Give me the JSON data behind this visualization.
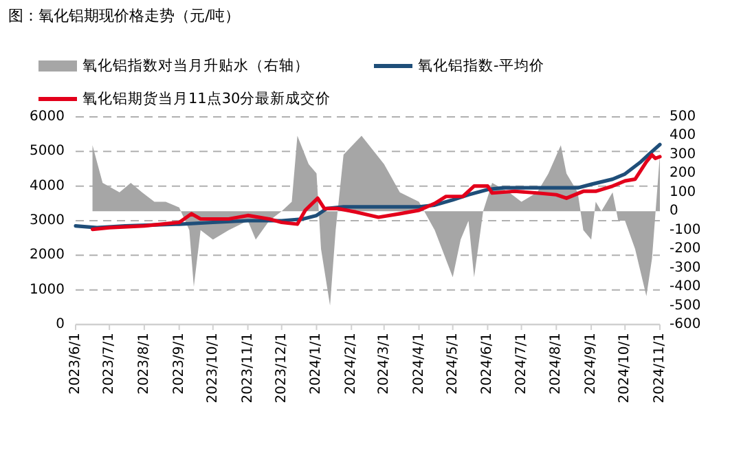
{
  "chart_data": {
    "type": "line",
    "title": "图：氧化铝期现价格走势（元/吨）",
    "legend": "top",
    "grid": "y",
    "xlim": [
      "2023-06-01",
      "2024-11-01"
    ],
    "xticks": [
      {
        "value": "2023-06-01",
        "label": "2023/6/1"
      },
      {
        "value": "2023-07-01",
        "label": "2023/7/1"
      },
      {
        "value": "2023-08-01",
        "label": "2023/8/1"
      },
      {
        "value": "2023-09-01",
        "label": "2023/9/1"
      },
      {
        "value": "2023-10-01",
        "label": "2023/10/1"
      },
      {
        "value": "2023-11-01",
        "label": "2023/11/1"
      },
      {
        "value": "2023-12-01",
        "label": "2023/12/1"
      },
      {
        "value": "2024-01-01",
        "label": "2024/1/1"
      },
      {
        "value": "2024-02-01",
        "label": "2024/2/1"
      },
      {
        "value": "2024-03-01",
        "label": "2024/3/1"
      },
      {
        "value": "2024-04-01",
        "label": "2024/4/1"
      },
      {
        "value": "2024-05-01",
        "label": "2024/5/1"
      },
      {
        "value": "2024-06-01",
        "label": "2024/6/1"
      },
      {
        "value": "2024-07-01",
        "label": "2024/7/1"
      },
      {
        "value": "2024-08-01",
        "label": "2024/8/1"
      },
      {
        "value": "2024-09-01",
        "label": "2024/9/1"
      },
      {
        "value": "2024-10-01",
        "label": "2024/10/1"
      },
      {
        "value": "2024-11-01",
        "label": "2024/11/1"
      }
    ],
    "ylim": [
      0,
      6000
    ],
    "yticks": [
      0,
      1000,
      2000,
      3000,
      4000,
      5000,
      6000
    ],
    "y2lim": [
      -600,
      500
    ],
    "y2ticks": [
      -600,
      -500,
      -400,
      -300,
      -200,
      -100,
      0,
      100,
      200,
      300,
      400,
      500
    ],
    "series": [
      {
        "name": "氧化铝指数对当月升贴水（右轴）",
        "type": "area",
        "axis": "y2",
        "color": "#a6a6a6",
        "x": [
          "2023-06-16",
          "2023-06-25",
          "2023-07-10",
          "2023-07-20",
          "2023-07-30",
          "2023-08-10",
          "2023-08-20",
          "2023-09-01",
          "2023-09-10",
          "2023-09-14",
          "2023-09-20",
          "2023-10-01",
          "2023-10-15",
          "2023-11-01",
          "2023-11-08",
          "2023-11-20",
          "2023-12-01",
          "2023-12-10",
          "2023-12-15",
          "2023-12-25",
          "2024-01-01",
          "2024-01-05",
          "2024-01-13",
          "2024-01-18",
          "2024-01-25",
          "2024-02-10",
          "2024-03-01",
          "2024-03-15",
          "2024-04-01",
          "2024-04-15",
          "2024-05-01",
          "2024-05-08",
          "2024-05-15",
          "2024-05-20",
          "2024-05-28",
          "2024-06-05",
          "2024-06-20",
          "2024-07-01",
          "2024-07-15",
          "2024-07-25",
          "2024-08-05",
          "2024-08-10",
          "2024-08-20",
          "2024-08-25",
          "2024-09-01",
          "2024-09-05",
          "2024-09-10",
          "2024-09-20",
          "2024-09-25",
          "2024-10-01",
          "2024-10-10",
          "2024-10-20",
          "2024-10-25",
          "2024-11-01"
        ],
        "values": [
          350,
          150,
          100,
          150,
          100,
          50,
          50,
          20,
          -100,
          -400,
          -100,
          -150,
          -100,
          -50,
          -150,
          -50,
          0,
          50,
          400,
          250,
          200,
          -200,
          -500,
          -100,
          300,
          400,
          250,
          100,
          50,
          -100,
          -350,
          -150,
          -50,
          -350,
          0,
          150,
          100,
          50,
          100,
          200,
          350,
          200,
          100,
          -100,
          -150,
          50,
          0,
          100,
          -50,
          -50,
          -200,
          -450,
          -250,
          300
        ]
      },
      {
        "name": "氧化铝指数-平均价",
        "color": "#1f4e79",
        "x": [
          "2023-06-01",
          "2023-06-20",
          "2023-07-15",
          "2023-09-01",
          "2023-10-01",
          "2023-11-01",
          "2023-12-01",
          "2023-12-20",
          "2024-01-01",
          "2024-01-10",
          "2024-01-25",
          "2024-04-01",
          "2024-04-15",
          "2024-05-01",
          "2024-05-15",
          "2024-06-01",
          "2024-06-15",
          "2024-08-20",
          "2024-09-01",
          "2024-09-20",
          "2024-10-01",
          "2024-10-15",
          "2024-10-25",
          "2024-11-01"
        ],
        "values": [
          2850,
          2800,
          2850,
          2900,
          2950,
          3000,
          3000,
          3050,
          3150,
          3350,
          3400,
          3400,
          3450,
          3600,
          3750,
          3900,
          3950,
          3950,
          4050,
          4200,
          4350,
          4700,
          5000,
          5200
        ]
      },
      {
        "name": "氧化铝期货当月11点30分最新成交价",
        "color": "#e3001b",
        "x": [
          "2023-06-16",
          "2023-07-01",
          "2023-08-01",
          "2023-09-01",
          "2023-09-12",
          "2023-09-20",
          "2023-10-15",
          "2023-11-01",
          "2023-11-20",
          "2023-12-01",
          "2023-12-15",
          "2023-12-22",
          "2024-01-02",
          "2024-01-08",
          "2024-01-20",
          "2024-02-05",
          "2024-02-25",
          "2024-03-15",
          "2024-04-01",
          "2024-04-15",
          "2024-04-25",
          "2024-05-10",
          "2024-05-20",
          "2024-06-01",
          "2024-06-05",
          "2024-06-25",
          "2024-07-15",
          "2024-08-01",
          "2024-08-10",
          "2024-08-25",
          "2024-09-05",
          "2024-09-20",
          "2024-10-01",
          "2024-10-10",
          "2024-10-20",
          "2024-10-25",
          "2024-10-28",
          "2024-11-01"
        ],
        "values": [
          2750,
          2800,
          2850,
          2950,
          3200,
          3050,
          3050,
          3150,
          3050,
          2950,
          2900,
          3300,
          3650,
          3350,
          3350,
          3250,
          3100,
          3200,
          3300,
          3500,
          3700,
          3700,
          4000,
          4000,
          3800,
          3850,
          3800,
          3750,
          3650,
          3850,
          3850,
          4000,
          4150,
          4200,
          4700,
          4900,
          4800,
          4850
        ]
      }
    ]
  }
}
